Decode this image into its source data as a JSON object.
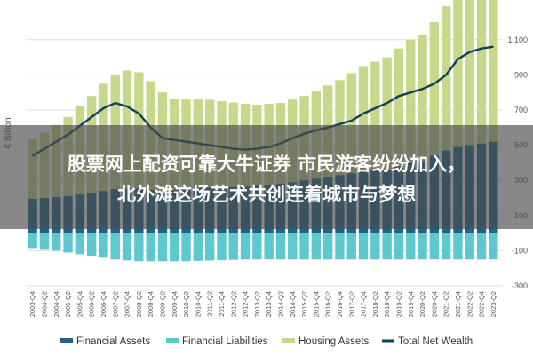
{
  "chart_data": {
    "type": "area",
    "ylabel": "€ Billion",
    "ylim": [
      -300,
      1200
    ],
    "yticks": [
      {
        "value": 1100,
        "label": "1,100"
      },
      {
        "value": 900,
        "label": "900"
      },
      {
        "value": 700,
        "label": "700"
      },
      {
        "value": 500,
        "label": "500"
      },
      {
        "value": 300,
        "label": "300"
      },
      {
        "value": 100,
        "label": "100"
      },
      {
        "value": -100,
        "label": "-100"
      },
      {
        "value": -300,
        "label": "-300"
      }
    ],
    "grid": true,
    "legend_position": "bottom",
    "x": [
      "2003-Q4",
      "2004-Q2",
      "2004-Q4",
      "2005-Q2",
      "2005-Q4",
      "2006-Q2",
      "2006-Q4",
      "2007-Q2",
      "2007-Q4",
      "2008-Q2",
      "2008-Q4",
      "2009-Q2",
      "2009-Q4",
      "2010-Q2",
      "2010-Q4",
      "2011-Q2",
      "2011-Q4",
      "2012-Q2",
      "2012-Q4",
      "2013-Q2",
      "2013-Q4",
      "2014-Q2",
      "2014-Q4",
      "2015-Q2",
      "2015-Q4",
      "2016-Q2",
      "2016-Q4",
      "2017-Q2",
      "2017-Q4",
      "2018-Q2",
      "2018-Q4",
      "2019-Q2",
      "2019-Q4",
      "2020-Q2",
      "2020-Q4",
      "2021-Q2",
      "2021-Q4",
      "2022-Q2",
      "2022-Q4",
      "2023-Q2"
    ],
    "series": [
      {
        "name": "Financial Assets",
        "color": "#1f6486",
        "values": [
          195,
          200,
          205,
          210,
          220,
          230,
          240,
          250,
          255,
          255,
          245,
          240,
          245,
          250,
          255,
          258,
          260,
          262,
          265,
          270,
          275,
          280,
          290,
          300,
          310,
          320,
          330,
          340,
          350,
          355,
          360,
          380,
          400,
          410,
          440,
          470,
          490,
          500,
          510,
          520
        ]
      },
      {
        "name": "Financial Liabilities",
        "color": "#5ec8cf",
        "values": [
          -90,
          -95,
          -100,
          -110,
          -120,
          -130,
          -140,
          -150,
          -155,
          -160,
          -160,
          -160,
          -160,
          -160,
          -158,
          -156,
          -154,
          -152,
          -150,
          -150,
          -150,
          -150,
          -150,
          -150,
          -150,
          -150,
          -150,
          -150,
          -150,
          -150,
          -150,
          -150,
          -150,
          -150,
          -150,
          -150,
          -150,
          -150,
          -150,
          -150
        ]
      },
      {
        "name": "Housing Assets",
        "color": "#c6d98a",
        "values": [
          340,
          370,
          410,
          450,
          500,
          550,
          610,
          650,
          670,
          660,
          620,
          560,
          520,
          510,
          505,
          500,
          490,
          480,
          470,
          460,
          460,
          460,
          470,
          480,
          500,
          520,
          540,
          570,
          600,
          620,
          640,
          670,
          700,
          720,
          760,
          820,
          880,
          920,
          940,
          950
        ]
      },
      {
        "name": "Total Net Wealth",
        "color": "#12405a",
        "values": [
          440,
          480,
          520,
          560,
          610,
          660,
          710,
          740,
          720,
          680,
          600,
          540,
          530,
          520,
          510,
          500,
          490,
          480,
          475,
          480,
          490,
          510,
          540,
          565,
          585,
          600,
          620,
          640,
          680,
          710,
          740,
          780,
          800,
          820,
          850,
          900,
          990,
          1030,
          1050,
          1060
        ]
      }
    ]
  },
  "overlay": {
    "line1": "股票网上配资可靠大牛证券 市民游客纷纷加入，",
    "line2": "北外滩这场艺术共创连着城市与梦想"
  }
}
